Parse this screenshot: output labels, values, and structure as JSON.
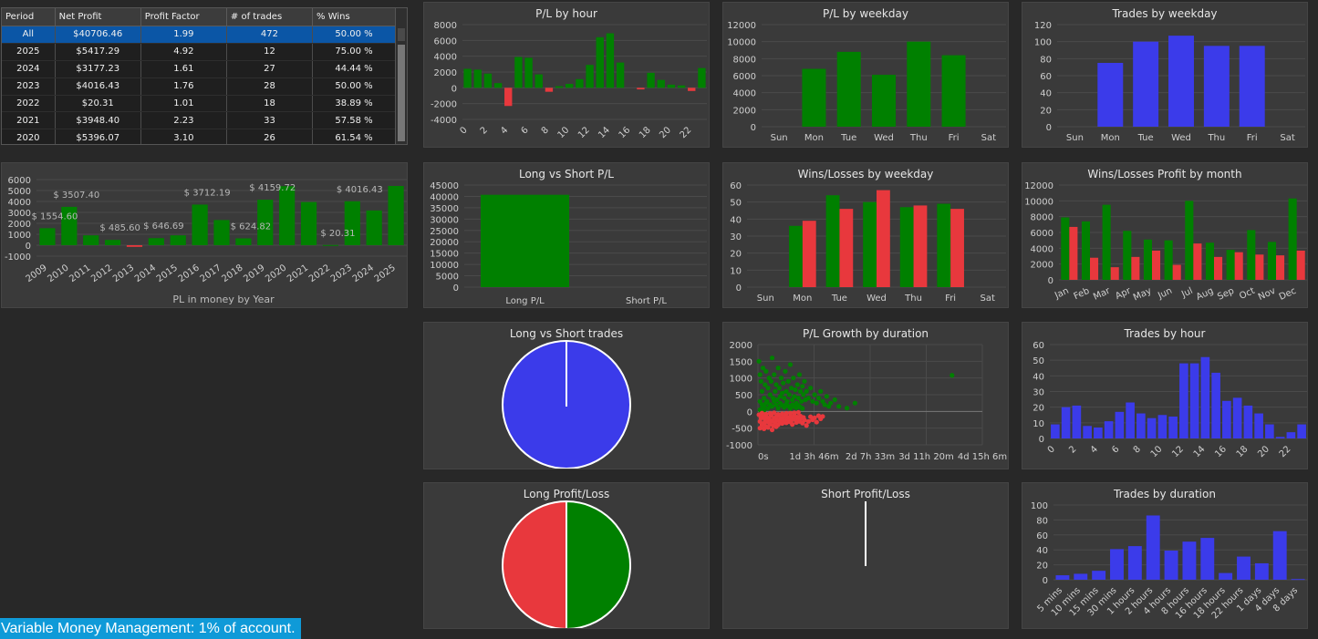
{
  "summary_table": {
    "columns": [
      "Period",
      "Net Profit",
      "Profit Factor",
      "# of trades",
      "% Wins"
    ],
    "rows": [
      [
        "All",
        "$40706.46",
        "1.99",
        "472",
        "50.00 %"
      ],
      [
        "2025",
        "$5417.29",
        "4.92",
        "12",
        "75.00 %"
      ],
      [
        "2024",
        "$3177.23",
        "1.61",
        "27",
        "44.44 %"
      ],
      [
        "2023",
        "$4016.43",
        "1.76",
        "28",
        "50.00 %"
      ],
      [
        "2022",
        "$20.31",
        "1.01",
        "18",
        "38.89 %"
      ],
      [
        "2021",
        "$3948.40",
        "2.23",
        "33",
        "57.58 %"
      ],
      [
        "2020",
        "$5396.07",
        "3.10",
        "26",
        "61.54 %"
      ]
    ],
    "selected_row": 0
  },
  "footer_note": "Variable Money Management: 1% of account.",
  "colors": {
    "green": "#008000",
    "red": "#e8383d",
    "blue": "#3b3bea",
    "panel": "#3a3a3a"
  },
  "chart_data": [
    {
      "id": "pl_by_year",
      "type": "bar",
      "title": "",
      "xlabel": "PL in money by Year",
      "categories": [
        "2009",
        "2010",
        "2011",
        "2012",
        "2013",
        "2014",
        "2015",
        "2016",
        "2017",
        "2018",
        "2019",
        "2020",
        "2021",
        "2022",
        "2023",
        "2024",
        "2025"
      ],
      "values": [
        1554.6,
        3507.4,
        900,
        485.6,
        -150,
        646.69,
        900,
        3712.19,
        2300,
        624.82,
        4159.72,
        5396.07,
        3948.4,
        20.31,
        4016.43,
        3177.23,
        5417.29
      ],
      "data_labels": [
        "$ 1554.60",
        "$ 3507.40",
        "",
        "$ 485.60",
        "",
        "$ 646.69",
        "",
        "$ 3712.19",
        "",
        "$ 624.82",
        "$ 4159.72",
        "",
        "",
        "$ 20.31",
        "$ 4016.43",
        "",
        ""
      ],
      "yticks": [
        -1000,
        0,
        1000,
        2000,
        3000,
        4000,
        5000,
        6000
      ],
      "ylim": [
        -1000,
        6000
      ]
    },
    {
      "id": "pl_by_hour",
      "type": "bar",
      "title": "P/L by hour",
      "categories": [
        "0",
        "1",
        "2",
        "3",
        "4",
        "5",
        "6",
        "7",
        "8",
        "9",
        "10",
        "11",
        "12",
        "13",
        "14",
        "15",
        "16",
        "17",
        "18",
        "19",
        "20",
        "21",
        "22",
        "23"
      ],
      "values": [
        2400,
        2300,
        1800,
        600,
        -2300,
        3900,
        3800,
        1700,
        -500,
        200,
        500,
        1100,
        2900,
        6400,
        6900,
        3200,
        0,
        -200,
        1900,
        1000,
        400,
        300,
        -400,
        2500
      ],
      "xticks": [
        "0",
        "2",
        "4",
        "6",
        "8",
        "10",
        "12",
        "14",
        "16",
        "18",
        "20",
        "22"
      ],
      "yticks": [
        -4000,
        -2000,
        0,
        2000,
        4000,
        6000,
        8000
      ],
      "ylim": [
        -4000,
        8000
      ]
    },
    {
      "id": "pl_by_weekday",
      "type": "bar",
      "title": "P/L by weekday",
      "categories": [
        "Sun",
        "Mon",
        "Tue",
        "Wed",
        "Thu",
        "Fri",
        "Sat"
      ],
      "values": [
        0,
        6800,
        8800,
        6100,
        10000,
        8400,
        0
      ],
      "yticks": [
        0,
        2000,
        4000,
        6000,
        8000,
        10000,
        12000
      ],
      "ylim": [
        0,
        12000
      ]
    },
    {
      "id": "trades_by_weekday",
      "type": "bar",
      "title": "Trades by weekday",
      "categories": [
        "Sun",
        "Mon",
        "Tue",
        "Wed",
        "Thu",
        "Fri",
        "Sat"
      ],
      "values": [
        0,
        75,
        100,
        107,
        95,
        95,
        0
      ],
      "yticks": [
        0,
        20,
        40,
        60,
        80,
        100,
        120
      ],
      "ylim": [
        0,
        120
      ]
    },
    {
      "id": "long_vs_short_pl",
      "type": "bar",
      "title": "Long vs Short P/L",
      "categories": [
        "Long P/L",
        "Short P/L"
      ],
      "values": [
        40706.46,
        0
      ],
      "yticks": [
        0,
        5000,
        10000,
        15000,
        20000,
        25000,
        30000,
        35000,
        40000,
        45000
      ],
      "ylim": [
        0,
        45000
      ]
    },
    {
      "id": "wins_losses_by_weekday",
      "type": "bar",
      "title": "Wins/Losses by weekday",
      "categories": [
        "Sun",
        "Mon",
        "Tue",
        "Wed",
        "Thu",
        "Fri",
        "Sat"
      ],
      "series": [
        {
          "values": [
            0,
            36,
            54,
            50,
            47,
            49,
            0
          ]
        },
        {
          "values": [
            0,
            39,
            46,
            57,
            48,
            46,
            0
          ]
        }
      ],
      "yticks": [
        0,
        10,
        20,
        30,
        40,
        50,
        60
      ],
      "ylim": [
        0,
        60
      ]
    },
    {
      "id": "wins_losses_profit_by_month",
      "type": "bar",
      "title": "Wins/Losses Profit by month",
      "categories": [
        "Jan",
        "Feb",
        "Mar",
        "Apr",
        "May",
        "Jun",
        "Jul",
        "Aug",
        "Sep",
        "Oct",
        "Nov",
        "Dec"
      ],
      "series": [
        {
          "values": [
            7900,
            7400,
            9500,
            6200,
            5100,
            5000,
            10000,
            4700,
            3800,
            6300,
            4800,
            10300
          ]
        },
        {
          "values": [
            6700,
            2800,
            1600,
            2900,
            3700,
            1900,
            4600,
            2900,
            3500,
            3200,
            3100,
            3700
          ]
        }
      ],
      "yticks": [
        0,
        2000,
        4000,
        6000,
        8000,
        10000,
        12000
      ],
      "ylim": [
        0,
        12000
      ]
    },
    {
      "id": "long_vs_short_trades",
      "type": "pie",
      "title": "Long vs Short trades",
      "slices": [
        472,
        0
      ]
    },
    {
      "id": "pl_growth_by_duration",
      "type": "scatter",
      "title": "P/L Growth by duration",
      "xticks": [
        "0s",
        "1d 3h 46m",
        "2d 7h 33m",
        "3d 11h 20m",
        "4d 15h 6m"
      ],
      "xlim_hours": [
        0,
        111
      ],
      "ylim": [
        -1000,
        2000
      ],
      "yticks": [
        -1000,
        -500,
        0,
        500,
        1000,
        1500,
        2000
      ],
      "points": [
        [
          0.5,
          1500
        ],
        [
          1,
          1100
        ],
        [
          1.5,
          900
        ],
        [
          2,
          600
        ],
        [
          2.5,
          1300
        ],
        [
          3,
          400
        ],
        [
          3.5,
          800
        ],
        [
          4,
          1200
        ],
        [
          4.5,
          300
        ],
        [
          5,
          700
        ],
        [
          5.5,
          1000
        ],
        [
          6,
          500
        ],
        [
          6.5,
          900
        ],
        [
          7,
          1600
        ],
        [
          7.5,
          400
        ],
        [
          8,
          1100
        ],
        [
          8.5,
          600
        ],
        [
          9,
          800
        ],
        [
          9.5,
          350
        ],
        [
          10,
          1300
        ],
        [
          10.5,
          700
        ],
        [
          11,
          450
        ],
        [
          11.5,
          1000
        ],
        [
          12,
          550
        ],
        [
          12.5,
          850
        ],
        [
          13,
          400
        ],
        [
          13.5,
          1200
        ],
        [
          14,
          600
        ],
        [
          14.5,
          300
        ],
        [
          15,
          900
        ],
        [
          15.5,
          500
        ],
        [
          16,
          1400
        ],
        [
          16.5,
          700
        ],
        [
          17,
          350
        ],
        [
          17.5,
          1000
        ],
        [
          18,
          450
        ],
        [
          18.5,
          650
        ],
        [
          19,
          250
        ],
        [
          19.5,
          800
        ],
        [
          20,
          400
        ],
        [
          20.5,
          1100
        ],
        [
          21,
          600
        ],
        [
          21.5,
          300
        ],
        [
          22,
          750
        ],
        [
          22.5,
          500
        ],
        [
          23,
          900
        ],
        [
          23.5,
          350
        ],
        [
          24,
          600
        ],
        [
          25,
          400
        ],
        [
          26,
          700
        ],
        [
          27,
          300
        ],
        [
          28,
          500
        ],
        [
          29,
          250
        ],
        [
          30,
          400
        ],
        [
          31,
          600
        ],
        [
          32,
          300
        ],
        [
          33,
          200
        ],
        [
          34,
          450
        ],
        [
          35,
          150
        ],
        [
          36,
          250
        ],
        [
          38,
          350
        ],
        [
          40,
          150
        ],
        [
          44,
          100
        ],
        [
          48,
          250
        ],
        [
          1,
          300
        ],
        [
          2,
          200
        ],
        [
          3,
          150
        ],
        [
          4,
          250
        ],
        [
          5,
          100
        ],
        [
          6,
          200
        ],
        [
          7,
          150
        ],
        [
          8,
          300
        ],
        [
          9,
          200
        ],
        [
          10,
          100
        ],
        [
          11,
          250
        ],
        [
          12,
          180
        ],
        [
          13,
          120
        ],
        [
          14,
          220
        ],
        [
          15,
          160
        ],
        [
          16,
          90
        ],
        [
          17,
          200
        ],
        [
          18,
          140
        ],
        [
          19,
          110
        ],
        [
          20,
          180
        ],
        [
          21,
          130
        ],
        [
          22,
          90
        ],
        [
          96,
          1080
        ],
        [
          1,
          50
        ],
        [
          2,
          80
        ],
        [
          3,
          30
        ],
        [
          0.5,
          -100
        ],
        [
          1,
          -300
        ],
        [
          1.5,
          -200
        ],
        [
          2,
          -400
        ],
        [
          2.5,
          -150
        ],
        [
          3,
          -350
        ],
        [
          3.5,
          -250
        ],
        [
          4,
          -450
        ],
        [
          4.5,
          -180
        ],
        [
          5,
          -320
        ],
        [
          5.5,
          -220
        ],
        [
          6,
          -380
        ],
        [
          6.5,
          -120
        ],
        [
          7,
          -280
        ],
        [
          7.5,
          -420
        ],
        [
          8,
          -200
        ],
        [
          8.5,
          -330
        ],
        [
          9,
          -160
        ],
        [
          9.5,
          -260
        ],
        [
          10,
          -400
        ],
        [
          10.5,
          -140
        ],
        [
          11,
          -300
        ],
        [
          11.5,
          -220
        ],
        [
          12,
          -360
        ],
        [
          12.5,
          -190
        ],
        [
          13,
          -290
        ],
        [
          13.5,
          -130
        ],
        [
          14,
          -340
        ],
        [
          14.5,
          -240
        ],
        [
          15,
          -180
        ],
        [
          15.5,
          -310
        ],
        [
          16,
          -150
        ],
        [
          16.5,
          -270
        ],
        [
          17,
          -390
        ],
        [
          17.5,
          -200
        ],
        [
          18,
          -120
        ],
        [
          18.5,
          -250
        ],
        [
          19,
          -330
        ],
        [
          19.5,
          -170
        ],
        [
          20,
          -230
        ],
        [
          20.5,
          -300
        ],
        [
          21,
          -140
        ],
        [
          21.5,
          -210
        ],
        [
          22,
          -350
        ],
        [
          22.5,
          -180
        ],
        [
          23,
          -260
        ],
        [
          24,
          -420
        ],
        [
          25,
          -300
        ],
        [
          26,
          -160
        ],
        [
          27,
          -250
        ],
        [
          28,
          -190
        ],
        [
          29,
          -320
        ],
        [
          30,
          -130
        ],
        [
          31,
          -220
        ],
        [
          32,
          -150
        ],
        [
          1,
          -500
        ],
        [
          3,
          -520
        ],
        [
          5,
          -480
        ],
        [
          7,
          -550
        ],
        [
          9,
          -460
        ],
        [
          2,
          -50
        ],
        [
          4,
          -80
        ],
        [
          6,
          -60
        ],
        [
          8,
          -40
        ],
        [
          10,
          -90
        ],
        [
          12,
          -70
        ],
        [
          14,
          -60
        ],
        [
          16,
          -50
        ],
        [
          18,
          -40
        ],
        [
          20,
          -30
        ]
      ]
    },
    {
      "id": "trades_by_hour",
      "type": "bar",
      "title": "Trades by hour",
      "categories": [
        "0",
        "1",
        "2",
        "3",
        "4",
        "5",
        "6",
        "7",
        "8",
        "9",
        "10",
        "11",
        "12",
        "13",
        "14",
        "15",
        "16",
        "17",
        "18",
        "19",
        "20",
        "21",
        "22",
        "23"
      ],
      "values": [
        9,
        20,
        21,
        8,
        7,
        11,
        17,
        23,
        16,
        13,
        15,
        14,
        48,
        48,
        52,
        42,
        24,
        26,
        21,
        16,
        9,
        1,
        4,
        9
      ],
      "xticks": [
        "0",
        "2",
        "4",
        "6",
        "8",
        "10",
        "12",
        "14",
        "16",
        "18",
        "20",
        "22"
      ],
      "yticks": [
        0,
        10,
        20,
        30,
        40,
        50,
        60
      ],
      "ylim": [
        0,
        60
      ]
    },
    {
      "id": "long_profit_loss",
      "type": "pie",
      "title": "Long Profit/Loss",
      "slices": [
        50.0,
        50.0
      ]
    },
    {
      "id": "short_profit_loss",
      "type": "pie",
      "title": "Short Profit/Loss",
      "slices": [
        0,
        0
      ]
    },
    {
      "id": "trades_by_duration",
      "type": "bar",
      "title": "Trades by duration",
      "categories": [
        "5 mins",
        "10 mins",
        "15 mins",
        "30 mins",
        "1 hours",
        "2 hours",
        "4 hours",
        "8 hours",
        "16 hours",
        "18 hours",
        "22 hours",
        "1 days",
        "4 days",
        "8 days"
      ],
      "values": [
        6,
        8,
        12,
        41,
        45,
        86,
        39,
        51,
        56,
        9,
        31,
        22,
        65,
        1
      ],
      "yticks": [
        0,
        20,
        40,
        60,
        80,
        100
      ],
      "ylim": [
        0,
        100
      ]
    }
  ]
}
